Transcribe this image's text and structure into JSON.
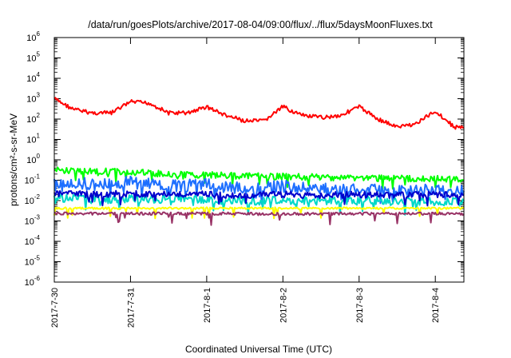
{
  "chart_data": {
    "type": "line",
    "title": "/data/run/goesPlots/archive/2017-08-04/09:00/flux/../flux/5daysMoonFluxes.txt",
    "xlabel": "Coordinated Universal Time (UTC)",
    "ylabel": "protons/cm²-s-sr-MeV",
    "y_scale": "log",
    "ylim": [
      1e-06,
      1000000.0
    ],
    "xlim": [
      "2017-07-30 00:00",
      "2017-08-04 09:00"
    ],
    "x_ticks": [
      "2017-7-30",
      "2017-7-31",
      "2017-8-1",
      "2017-8-2",
      "2017-8-3",
      "2017-8-4"
    ],
    "y_ticks": [
      {
        "base": "10",
        "exp": "-6",
        "value": 1e-06
      },
      {
        "base": "10",
        "exp": "-5",
        "value": 1e-05
      },
      {
        "base": "10",
        "exp": "-4",
        "value": 0.0001
      },
      {
        "base": "10",
        "exp": "-3",
        "value": 0.001
      },
      {
        "base": "10",
        "exp": "-2",
        "value": 0.01
      },
      {
        "base": "10",
        "exp": "-1",
        "value": 0.1
      },
      {
        "base": "10",
        "exp": "0",
        "value": 1
      },
      {
        "base": "10",
        "exp": "1",
        "value": 10
      },
      {
        "base": "10",
        "exp": "2",
        "value": 100
      },
      {
        "base": "10",
        "exp": "3",
        "value": 1000
      },
      {
        "base": "10",
        "exp": "4",
        "value": 10000
      },
      {
        "base": "10",
        "exp": "5",
        "value": 100000
      },
      {
        "base": "10",
        "exp": "6",
        "value": 1000000
      }
    ],
    "grid": false,
    "legend": "none",
    "series": [
      {
        "color": "#ff0000",
        "x": [
          "2017-07-30 00:00",
          "2017-07-30 06:00",
          "2017-07-30 12:00",
          "2017-07-30 18:00",
          "2017-07-31 00:00",
          "2017-07-31 06:00",
          "2017-07-31 12:00",
          "2017-07-31 18:00",
          "2017-08-01 00:00",
          "2017-08-01 06:00",
          "2017-08-01 12:00",
          "2017-08-01 18:00",
          "2017-08-02 00:00",
          "2017-08-02 06:00",
          "2017-08-02 12:00",
          "2017-08-02 18:00",
          "2017-08-03 00:00",
          "2017-08-03 06:00",
          "2017-08-03 12:00",
          "2017-08-03 18:00",
          "2017-08-04 00:00",
          "2017-08-04 06:00",
          "2017-08-04 09:00"
        ],
        "values": [
          1000,
          300,
          200,
          200,
          700,
          600,
          200,
          200,
          400,
          150,
          80,
          80,
          400,
          150,
          120,
          150,
          400,
          100,
          40,
          60,
          250,
          40,
          40
        ]
      },
      {
        "color": "#00ff00",
        "x": [
          "2017-07-30 00:00",
          "2017-07-30 12:00",
          "2017-07-31 00:00",
          "2017-07-31 12:00",
          "2017-08-01 00:00",
          "2017-08-01 12:00",
          "2017-08-02 00:00",
          "2017-08-02 12:00",
          "2017-08-03 00:00",
          "2017-08-03 12:00",
          "2017-08-04 00:00",
          "2017-08-04 09:00"
        ],
        "values": [
          0.3,
          0.28,
          0.25,
          0.2,
          0.18,
          0.16,
          0.15,
          0.14,
          0.13,
          0.12,
          0.12,
          0.1
        ]
      },
      {
        "color": "#1e6fff",
        "x": [
          "2017-07-30 00:00",
          "2017-07-30 12:00",
          "2017-07-31 00:00",
          "2017-07-31 12:00",
          "2017-08-01 00:00",
          "2017-08-01 12:00",
          "2017-08-02 00:00",
          "2017-08-02 12:00",
          "2017-08-03 00:00",
          "2017-08-03 12:00",
          "2017-08-04 00:00",
          "2017-08-04 09:00"
        ],
        "values": [
          0.1,
          0.06,
          0.08,
          0.05,
          0.06,
          0.04,
          0.05,
          0.035,
          0.04,
          0.03,
          0.035,
          0.03
        ]
      },
      {
        "color": "#00d8c8",
        "x": [
          "2017-07-30 00:00",
          "2017-07-30 12:00",
          "2017-07-31 00:00",
          "2017-07-31 12:00",
          "2017-08-01 00:00",
          "2017-08-01 12:00",
          "2017-08-02 00:00",
          "2017-08-02 12:00",
          "2017-08-03 00:00",
          "2017-08-03 12:00",
          "2017-08-04 00:00",
          "2017-08-04 09:00"
        ],
        "values": [
          0.013,
          0.012,
          0.012,
          0.011,
          0.011,
          0.01,
          0.01,
          0.01,
          0.01,
          0.009,
          0.009,
          0.009
        ]
      },
      {
        "color": "#0000cc",
        "x": [
          "2017-07-30 00:00",
          "2017-07-30 12:00",
          "2017-07-31 00:00",
          "2017-07-31 12:00",
          "2017-08-01 00:00",
          "2017-08-01 12:00",
          "2017-08-02 00:00",
          "2017-08-02 12:00",
          "2017-08-03 00:00",
          "2017-08-03 12:00",
          "2017-08-04 00:00",
          "2017-08-04 09:00"
        ],
        "values": [
          0.022,
          0.02,
          0.022,
          0.02,
          0.02,
          0.018,
          0.02,
          0.018,
          0.02,
          0.018,
          0.02,
          0.018
        ]
      },
      {
        "color": "#ffff00",
        "x": [
          "2017-07-30 00:00",
          "2017-07-31 00:00",
          "2017-08-01 00:00",
          "2017-08-02 00:00",
          "2017-08-03 00:00",
          "2017-08-04 00:00",
          "2017-08-04 09:00"
        ],
        "values": [
          0.0042,
          0.0042,
          0.0042,
          0.0042,
          0.0042,
          0.0042,
          0.0042
        ]
      },
      {
        "color": "#993366",
        "x": [
          "2017-07-30 00:00",
          "2017-07-31 00:00",
          "2017-08-01 00:00",
          "2017-08-02 00:00",
          "2017-08-03 00:00",
          "2017-08-04 00:00",
          "2017-08-04 09:00"
        ],
        "values": [
          0.0023,
          0.0023,
          0.0023,
          0.0022,
          0.0023,
          0.0023,
          0.0022
        ]
      }
    ]
  }
}
